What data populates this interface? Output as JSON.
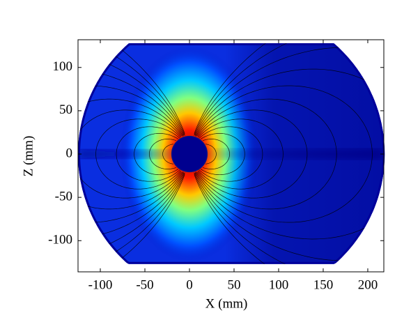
{
  "chart_data": {
    "type": "field",
    "xlabel": "X (mm)",
    "ylabel": "Z (mm)",
    "xlim": [
      -125,
      218
    ],
    "ylim": [
      -136,
      132
    ],
    "xticks": [
      -100,
      -50,
      0,
      50,
      100,
      150,
      200
    ],
    "yticks": [
      -100,
      -50,
      0,
      50,
      100
    ]
  }
}
